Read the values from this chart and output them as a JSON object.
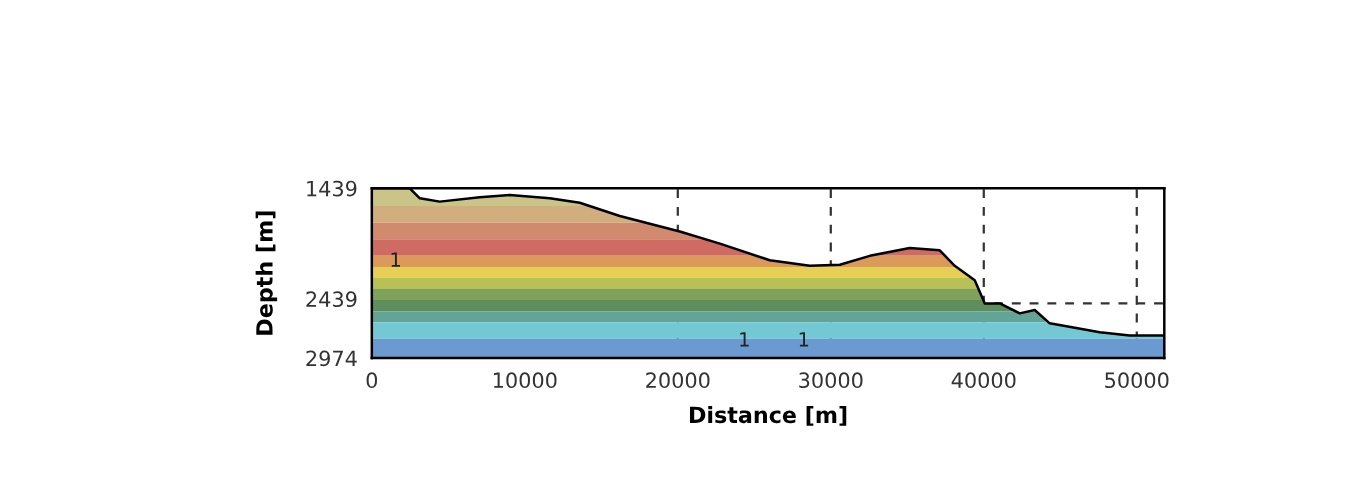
{
  "chart_data": {
    "type": "line",
    "xlabel": "Distance [m]",
    "ylabel": "Depth [m]",
    "x": [
      0,
      2480,
      3140,
      4440,
      7060,
      9020,
      11630,
      13590,
      16210,
      20130,
      22750,
      26010,
      28630,
      30590,
      32550,
      35160,
      37120,
      38100,
      39410,
      40065,
      41046,
      42350,
      43330,
      44310,
      45950,
      47580,
      49540,
      51800
    ],
    "series": [
      {
        "values": [
          1440,
          1440,
          1530,
          1560,
          1520,
          1500,
          1530,
          1570,
          1690,
          1830,
          1940,
          2090,
          2140,
          2130,
          2050,
          1980,
          2000,
          2140,
          2270,
          2480,
          2480,
          2570,
          2540,
          2660,
          2700,
          2740,
          2770,
          2770
        ],
        "color": "#000000"
      }
    ],
    "xlim": [
      0,
      51800
    ],
    "ylim": [
      2974,
      1439
    ],
    "xticks": [
      0,
      10000,
      20000,
      30000,
      40000,
      50000
    ],
    "yticks": [
      1439,
      2439,
      2974
    ],
    "ref_lines": [
      {
        "axis": "x",
        "value": 20000,
        "line_style": "dashed"
      },
      {
        "axis": "x",
        "value": 30000,
        "line_style": "dashed"
      },
      {
        "axis": "x",
        "value": 40000,
        "line_style": "dashed"
      },
      {
        "axis": "x",
        "value": 50000,
        "line_style": "dashed"
      },
      {
        "axis": "y",
        "value": 2480,
        "line_style": "dashed"
      }
    ],
    "bands": [
      {
        "axis": "y",
        "from": 1439,
        "to": 1600,
        "color": "#cbc488"
      },
      {
        "axis": "y",
        "from": 1600,
        "to": 1750,
        "color": "#d0ae7e"
      },
      {
        "axis": "y",
        "from": 1750,
        "to": 1900,
        "color": "#d28a6e"
      },
      {
        "axis": "y",
        "from": 1900,
        "to": 2050,
        "color": "#cf6b62"
      },
      {
        "axis": "y",
        "from": 2050,
        "to": 2150,
        "color": "#dc9a5a"
      },
      {
        "axis": "y",
        "from": 2150,
        "to": 2250,
        "color": "#e6cf55"
      },
      {
        "axis": "y",
        "from": 2250,
        "to": 2350,
        "color": "#b8c058"
      },
      {
        "axis": "y",
        "from": 2350,
        "to": 2450,
        "color": "#7ea25c"
      },
      {
        "axis": "y",
        "from": 2450,
        "to": 2550,
        "color": "#5e8e5e"
      },
      {
        "axis": "y",
        "from": 2550,
        "to": 2650,
        "color": "#62a496"
      },
      {
        "axis": "y",
        "from": 2650,
        "to": 2800,
        "color": "#74c8d4"
      },
      {
        "axis": "y",
        "from": 2800,
        "to": 2974,
        "color": "#6a9ad0"
      }
    ],
    "annotations": [
      "1",
      "1",
      "1"
    ]
  }
}
